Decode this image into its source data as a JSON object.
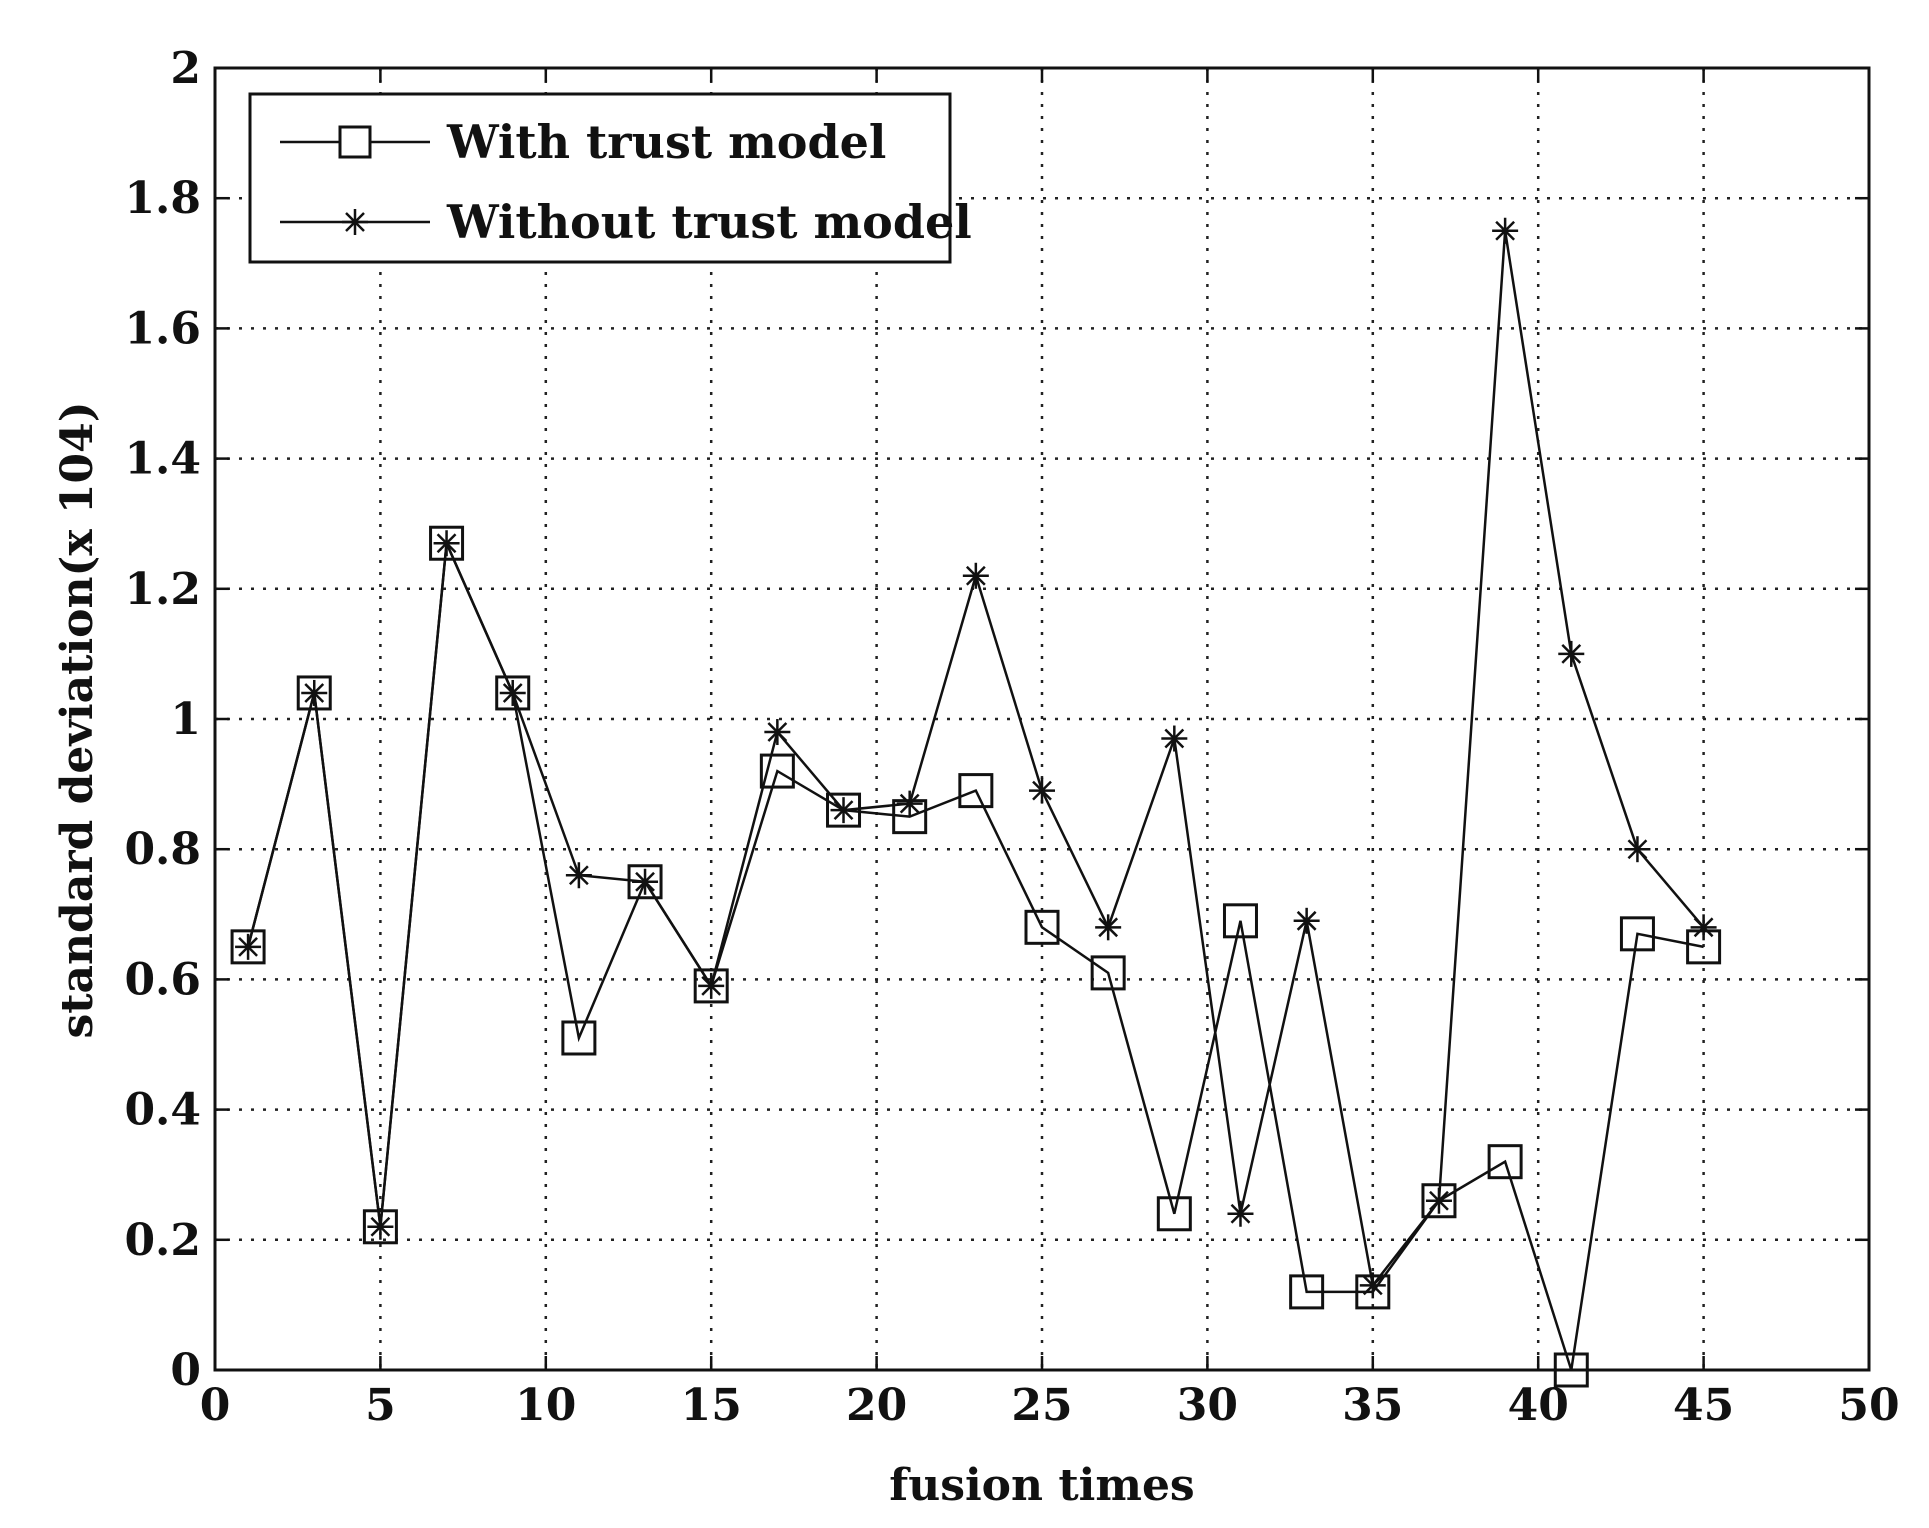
{
  "chart_data": {
    "type": "line",
    "xlabel": "fusion times",
    "ylabel": "standard deviation(x 104)",
    "xlim": [
      0,
      50
    ],
    "ylim": [
      0,
      2
    ],
    "xticks": [
      0,
      5,
      10,
      15,
      20,
      25,
      30,
      35,
      40,
      45,
      50
    ],
    "yticks": [
      0,
      0.2,
      0.4,
      0.6,
      0.8,
      1,
      1.2,
      1.4,
      1.6,
      1.8,
      2
    ],
    "ytick_labels": [
      "0",
      "0.2",
      "0.4",
      "0.6",
      "0.8",
      "1",
      "1.2",
      "1.4",
      "1.6",
      "1.8",
      "2"
    ],
    "grid": true,
    "legend_position": "top-left",
    "x": [
      1,
      3,
      5,
      7,
      9,
      11,
      13,
      15,
      17,
      19,
      21,
      23,
      25,
      27,
      29,
      31,
      33,
      35,
      37,
      39,
      41,
      43,
      45
    ],
    "series": [
      {
        "name": "With trust model",
        "marker": "square",
        "values": [
          0.65,
          1.04,
          0.22,
          1.27,
          1.04,
          0.51,
          0.75,
          0.59,
          0.92,
          0.86,
          0.85,
          0.89,
          0.68,
          0.61,
          0.24,
          0.69,
          0.12,
          0.12,
          0.26,
          0.32,
          0.0,
          0.67,
          0.65
        ]
      },
      {
        "name": "Without trust model",
        "marker": "star",
        "values": [
          0.65,
          1.04,
          0.22,
          1.27,
          1.04,
          0.76,
          0.75,
          0.59,
          0.98,
          0.86,
          0.87,
          1.22,
          0.89,
          0.68,
          0.97,
          0.24,
          0.69,
          0.13,
          0.26,
          1.75,
          1.1,
          0.8,
          0.68
        ]
      }
    ]
  }
}
